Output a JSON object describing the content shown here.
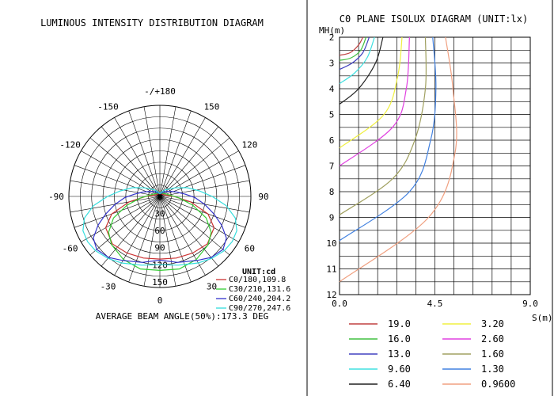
{
  "left_title": "LUMINOUS INTENSITY DISTRIBUTION DIAGRAM",
  "right_title": "C0 PLANE ISOLUX DIAGRAM (UNIT:lx)",
  "colors": {
    "c0": "#cc3333",
    "c30": "#33cc33",
    "c60": "#3333cc",
    "c90": "#33dddd",
    "iso_19": "#c04040",
    "iso_16": "#40c040",
    "iso_13": "#4040c0",
    "iso_960": "#40e0e0",
    "iso_640": "#202020",
    "iso_320": "#f0f040",
    "iso_260": "#e040e0",
    "iso_160": "#a0a060",
    "iso_130": "#4080e0",
    "iso_096": "#f0a080"
  },
  "chart_data": [
    {
      "type": "polar",
      "title": "LUMINOUS INTENSITY DISTRIBUTION DIAGRAM",
      "angle_labels": [
        {
          "angle": 180,
          "text": "-/+180"
        },
        {
          "angle": -150,
          "text": "-150"
        },
        {
          "angle": 150,
          "text": "150"
        },
        {
          "angle": -120,
          "text": "-120"
        },
        {
          "angle": 120,
          "text": "120"
        },
        {
          "angle": -90,
          "text": "-90"
        },
        {
          "angle": 90,
          "text": "90"
        },
        {
          "angle": -60,
          "text": "-60"
        },
        {
          "angle": 60,
          "text": "60"
        },
        {
          "angle": -30,
          "text": "-30"
        },
        {
          "angle": 30,
          "text": "30"
        },
        {
          "angle": 0,
          "text": "0"
        }
      ],
      "radial_ticks": [
        "30",
        "60",
        "90",
        "120",
        "150"
      ],
      "rmax": 160,
      "unit_label": "UNIT:cd",
      "series": [
        {
          "name": "C0/180,109.8",
          "color": "#cc3333",
          "points": [
            [
              0,
              110
            ],
            [
              15,
              112
            ],
            [
              30,
              115
            ],
            [
              45,
              118
            ],
            [
              60,
              110
            ],
            [
              70,
              90
            ],
            [
              80,
              55
            ],
            [
              90,
              25
            ],
            [
              100,
              12
            ],
            [
              110,
              8
            ],
            [
              130,
              6
            ],
            [
              160,
              5
            ],
            [
              180,
              5
            ]
          ]
        },
        {
          "name": "C30/210,131.6",
          "color": "#33cc33",
          "points": [
            [
              0,
              130
            ],
            [
              15,
              132
            ],
            [
              30,
              128
            ],
            [
              45,
              120
            ],
            [
              55,
              110
            ],
            [
              65,
              90
            ],
            [
              75,
              60
            ],
            [
              85,
              35
            ],
            [
              95,
              20
            ],
            [
              110,
              12
            ],
            [
              130,
              8
            ],
            [
              160,
              6
            ],
            [
              180,
              5
            ]
          ]
        },
        {
          "name": "C60/240,204.2",
          "color": "#3333cc",
          "points": [
            [
              0,
              112
            ],
            [
              15,
              120
            ],
            [
              30,
              130
            ],
            [
              40,
              140
            ],
            [
              50,
              145
            ],
            [
              58,
              138
            ],
            [
              65,
              120
            ],
            [
              72,
              100
            ],
            [
              80,
              80
            ],
            [
              88,
              62
            ],
            [
              95,
              45
            ],
            [
              105,
              30
            ],
            [
              120,
              18
            ],
            [
              140,
              10
            ],
            [
              160,
              6
            ],
            [
              180,
              5
            ]
          ]
        },
        {
          "name": "C90/270,247.6",
          "color": "#33dddd",
          "points": [
            [
              0,
              120
            ],
            [
              15,
              125
            ],
            [
              30,
              135
            ],
            [
              40,
              142
            ],
            [
              50,
              148
            ],
            [
              58,
              150
            ],
            [
              66,
              148
            ],
            [
              74,
              138
            ],
            [
              82,
              118
            ],
            [
              90,
              92
            ],
            [
              98,
              70
            ],
            [
              108,
              50
            ],
            [
              120,
              30
            ],
            [
              140,
              15
            ],
            [
              160,
              8
            ],
            [
              180,
              5
            ]
          ]
        }
      ],
      "beam_angle_text": "AVERAGE BEAM ANGLE(50%):173.3 DEG"
    },
    {
      "type": "line",
      "title": "C0 PLANE ISOLUX DIAGRAM (UNIT:lx)",
      "xlabel": "S(m)",
      "ylabel": "MH(m)",
      "xlim": [
        0,
        9
      ],
      "ylim": [
        2,
        12
      ],
      "x_tick_labels": [
        "0.0",
        "4.5",
        "9.0"
      ],
      "y_tick_labels": [
        "2",
        "3",
        "4",
        "5",
        "6",
        "7",
        "8",
        "9",
        "10",
        "11",
        "12"
      ],
      "series": [
        {
          "name": "19.0",
          "color": "#c04040",
          "h": [
            2.0,
            2.3,
            2.6,
            2.7
          ],
          "s": [
            1.1,
            0.9,
            0.5,
            0.0
          ]
        },
        {
          "name": "16.0",
          "color": "#40c040",
          "h": [
            2.0,
            2.5,
            2.8,
            2.9
          ],
          "s": [
            1.25,
            1.0,
            0.55,
            0.0
          ]
        },
        {
          "name": "13.0",
          "color": "#4040c0",
          "h": [
            2.0,
            2.6,
            3.0,
            3.25
          ],
          "s": [
            1.4,
            1.1,
            0.6,
            0.0
          ]
        },
        {
          "name": "9.60",
          "color": "#40e0e0",
          "h": [
            2.0,
            2.8,
            3.4,
            3.8
          ],
          "s": [
            1.65,
            1.3,
            0.7,
            0.0
          ]
        },
        {
          "name": "6.40",
          "color": "#202020",
          "h": [
            2.0,
            3.0,
            4.0,
            4.6
          ],
          "s": [
            2.05,
            1.7,
            0.9,
            0.0
          ]
        },
        {
          "name": "3.20",
          "color": "#f0f040",
          "h": [
            2.0,
            3.5,
            5.0,
            6.3
          ],
          "s": [
            2.95,
            2.75,
            2.1,
            0.0
          ]
        },
        {
          "name": "2.60",
          "color": "#e040e0",
          "h": [
            2.0,
            4.0,
            5.5,
            7.0
          ],
          "s": [
            3.3,
            3.15,
            2.5,
            0.0
          ]
        },
        {
          "name": "1.60",
          "color": "#a0a060",
          "h": [
            2.0,
            4.0,
            6.0,
            7.5,
            8.9
          ],
          "s": [
            4.05,
            4.05,
            3.55,
            2.5,
            0.0
          ]
        },
        {
          "name": "1.30",
          "color": "#4080e0",
          "h": [
            2.0,
            4.0,
            6.0,
            8.0,
            9.9
          ],
          "s": [
            4.4,
            4.55,
            4.3,
            3.3,
            0.0
          ]
        },
        {
          "name": "0.9600",
          "color": "#f0a080",
          "h": [
            2.0,
            4.0,
            6.5,
            9.0,
            11.5
          ],
          "s": [
            5.0,
            5.35,
            5.45,
            4.2,
            0.0
          ]
        }
      ]
    }
  ]
}
